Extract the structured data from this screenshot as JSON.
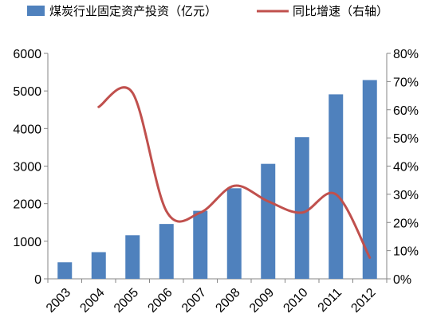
{
  "chart_data": {
    "type": "bar",
    "categories": [
      "2003",
      "2004",
      "2005",
      "2006",
      "2007",
      "2008",
      "2009",
      "2010",
      "2011",
      "2012"
    ],
    "series": [
      {
        "name": "煤炭行业固定资产投资（亿元）",
        "type": "bar",
        "axis": "left",
        "color": "#4F81BD",
        "values": [
          440,
          710,
          1160,
          1460,
          1810,
          2410,
          3060,
          3770,
          4910,
          5290
        ]
      },
      {
        "name": "同比增速（右轴）",
        "type": "line",
        "axis": "right",
        "color": "#C0504D",
        "values": [
          null,
          0.61,
          0.66,
          0.24,
          0.235,
          0.33,
          0.275,
          0.235,
          0.3,
          0.075
        ]
      }
    ],
    "y_left": {
      "min": 0,
      "max": 6000,
      "ticks": [
        "0",
        "1000",
        "2000",
        "3000",
        "4000",
        "5000",
        "6000"
      ]
    },
    "y_right": {
      "min": 0,
      "max": 0.8,
      "ticks": [
        "0%",
        "10%",
        "20%",
        "30%",
        "40%",
        "50%",
        "60%",
        "70%",
        "80%"
      ]
    },
    "legend": "top",
    "grid": false
  }
}
